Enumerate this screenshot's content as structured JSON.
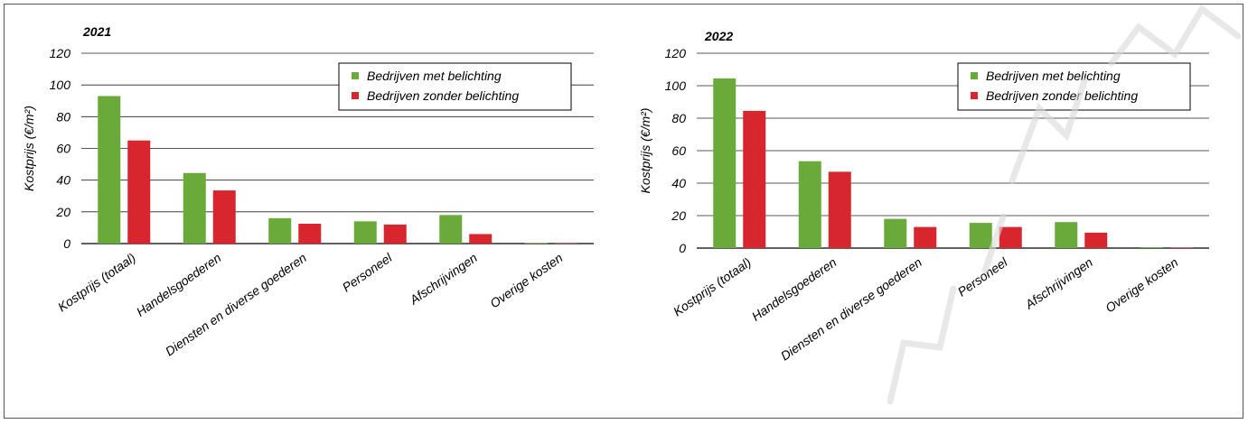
{
  "chart_data": [
    {
      "type": "bar",
      "title": "2021",
      "ylabel": "Kostprijs (€/m²)",
      "xlabel": "",
      "ylim": [
        0,
        120
      ],
      "yticks": [
        0,
        20,
        40,
        60,
        80,
        100,
        120
      ],
      "categories": [
        "Kostprijs (totaal)",
        "Handelsgoederen",
        "Diensten en diverse goederen",
        "Personeel",
        "Afschrijvingen",
        "Overige kosten"
      ],
      "series": [
        {
          "name": "Bedrijven met belichting",
          "color": "#6aaa3a",
          "values": [
            93,
            44.5,
            16,
            14,
            18,
            0.3
          ]
        },
        {
          "name": "Bedrijven zonder belichting",
          "color": "#d8262f",
          "values": [
            65,
            33.5,
            12.5,
            12,
            6,
            0.3
          ]
        }
      ],
      "grid": true,
      "legend": "top-right"
    },
    {
      "type": "bar",
      "title": "2022",
      "ylabel": "Kostprijs (€/m²)",
      "xlabel": "",
      "ylim": [
        0,
        120
      ],
      "yticks": [
        0,
        20,
        40,
        60,
        80,
        100,
        120
      ],
      "categories": [
        "Kostprijs (totaal)",
        "Handelsgoederen",
        "Diensten en diverse goederen",
        "Personeel",
        "Afschrijvingen",
        "Overige kosten"
      ],
      "series": [
        {
          "name": "Bedrijven met belichting",
          "color": "#6aaa3a",
          "values": [
            104.5,
            53.5,
            18,
            15.5,
            16,
            0.5
          ]
        },
        {
          "name": "Bedrijven zonder belichting",
          "color": "#d8262f",
          "values": [
            84.5,
            47,
            13,
            13,
            9.5,
            0.3
          ]
        }
      ],
      "grid": true,
      "legend": "top-right"
    }
  ]
}
